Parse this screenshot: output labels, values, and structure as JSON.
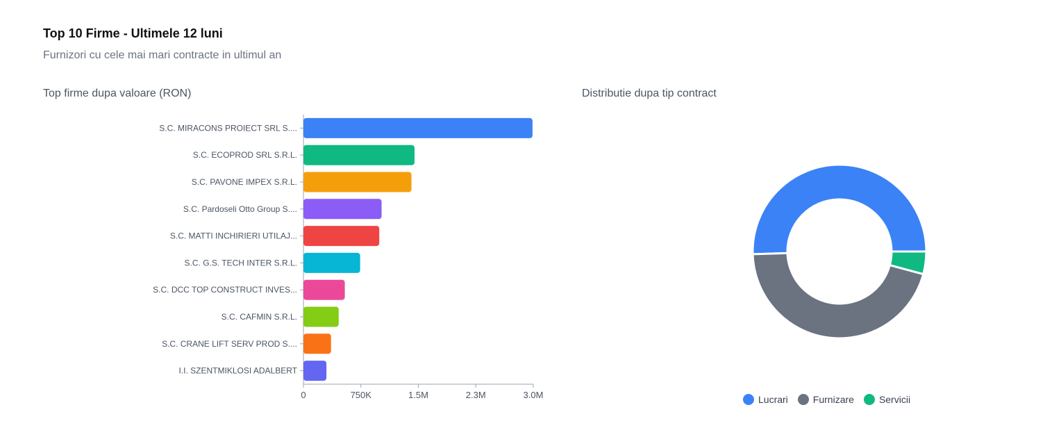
{
  "header": {
    "title": "Top 10 Firme - Ultimele 12 luni",
    "subtitle": "Furnizori cu cele mai mari contracte in ultimul an"
  },
  "chart_data": [
    {
      "type": "bar",
      "orientation": "horizontal",
      "title": "Top firme dupa valoare (RON)",
      "xlabel": "",
      "ylabel": "",
      "xlim": [
        0,
        3000000
      ],
      "x_ticks": [
        {
          "value": 0,
          "label": "0"
        },
        {
          "value": 750000,
          "label": "750K"
        },
        {
          "value": 1500000,
          "label": "1.5M"
        },
        {
          "value": 2250000,
          "label": "2.3M"
        },
        {
          "value": 3000000,
          "label": "3.0M"
        }
      ],
      "categories": [
        "S.C. MIRACONS PROIECT SRL S....",
        "S.C. ECOPROD SRL S.R.L.",
        "S.C. PAVONE IMPEX S.R.L.",
        "S.C. Pardoseli Otto Group S....",
        "S.C. MATTI INCHIRIERI UTILAJ...",
        "S.C. G.S. TECH INTER S.R.L.",
        "S.C. DCC TOP CONSTRUCT INVES...",
        "S.C. CAFMIN S.R.L.",
        "S.C. CRANE LIFT SERV PROD S....",
        "I.I. SZENTMIKLOSI ADALBERT"
      ],
      "values": [
        2990000,
        1450000,
        1410000,
        1020000,
        990000,
        740000,
        540000,
        460000,
        360000,
        300000
      ],
      "colors": [
        "#3b82f6",
        "#10b981",
        "#f59e0b",
        "#8b5cf6",
        "#ef4444",
        "#06b6d4",
        "#ec4899",
        "#84cc16",
        "#f97316",
        "#6366f1"
      ],
      "grid": false
    },
    {
      "type": "pie",
      "variant": "donut",
      "title": "Distributie dupa tip contract",
      "labels": [
        "Lucrari",
        "Furnizare",
        "Servicii"
      ],
      "values": [
        50.5,
        45.3,
        4.2
      ],
      "colors": [
        "#3b82f6",
        "#6b7280",
        "#10b981"
      ],
      "legend": "bottom"
    }
  ]
}
